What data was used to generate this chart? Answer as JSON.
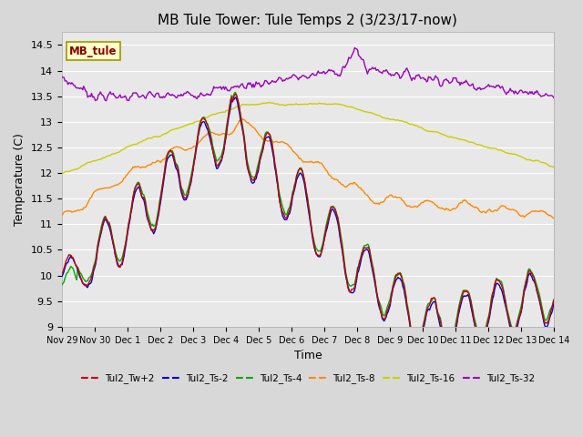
{
  "title": "MB Tule Tower: Tule Temps 2 (3/23/17-now)",
  "xlabel": "Time",
  "ylabel": "Temperature (C)",
  "background_color": "#d8d8d8",
  "plot_bg_color": "#e8e8e8",
  "legend_box_label": "MB_tule",
  "series_colors": {
    "Tul2_Tw+2": "#cc0000",
    "Tul2_Ts-2": "#0000cc",
    "Tul2_Ts-4": "#00aa00",
    "Tul2_Ts-8": "#ff8800",
    "Tul2_Ts-16": "#cccc00",
    "Tul2_Ts-32": "#9900bb"
  },
  "x_tick_labels": [
    "Nov 29",
    "Nov 30",
    "Dec 1",
    "Dec 2",
    "Dec 3",
    "Dec 4",
    "Dec 5",
    "Dec 6",
    "Dec 7",
    "Dec 8",
    "Dec 9",
    "Dec 10",
    "Dec 11",
    "Dec 12",
    "Dec 13",
    "Dec 14"
  ],
  "yticks": [
    9.0,
    9.5,
    10.0,
    10.5,
    11.0,
    11.5,
    12.0,
    12.5,
    13.0,
    13.5,
    14.0,
    14.5
  ],
  "ylim": [
    9.0,
    14.75
  ],
  "xlim": [
    0,
    15
  ],
  "n_points": 500,
  "figsize": [
    6.4,
    4.8
  ],
  "dpi": 100
}
